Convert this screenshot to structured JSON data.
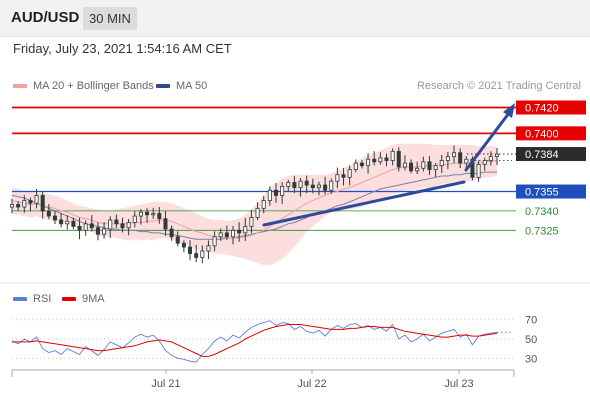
{
  "header": {
    "pair": "AUD/USD",
    "timeframe": "30 MIN"
  },
  "datetime": "Friday, July 23, 2021 1:54:16 AM CET",
  "legend": {
    "ma20": {
      "label": "MA 20 + Bollinger Bands",
      "color": "#f08080"
    },
    "ma50": {
      "label": "MA 50",
      "color": "#2f4a8a"
    },
    "rsi": {
      "label": "RSI",
      "color": "#5b7fdb"
    },
    "rsi_ma": {
      "label": "9MA",
      "color": "#e00000"
    }
  },
  "credit": "Research © 2021 Trading Central",
  "colors": {
    "resistance": "#e60000",
    "support_main": "#1f4fbf",
    "support_minor": "#2e8b2e",
    "current": "#2b2b2b",
    "trend": "#2f4a9a",
    "bollinger": "#fbd8d8",
    "candle_up": "#2f3a3a",
    "candle_down": "#2f3a3a"
  },
  "chart_data": {
    "type": "candlestick",
    "price_ylim": [
      0.7285,
      0.7432
    ],
    "levels": [
      {
        "value": 0.742,
        "label": "0.7420",
        "kind": "resistance"
      },
      {
        "value": 0.74,
        "label": "0.7400",
        "kind": "resistance"
      },
      {
        "value": 0.7384,
        "label": "0.7384",
        "kind": "current"
      },
      {
        "value": 0.7355,
        "label": "0.7355",
        "kind": "support_main"
      },
      {
        "value": 0.734,
        "label": "0.7340",
        "kind": "support_minor"
      },
      {
        "value": 0.7325,
        "label": "0.7325",
        "kind": "support_minor"
      }
    ],
    "x_ticks": [
      "Jul 21",
      "Jul 22",
      "Jul 23"
    ],
    "close_path": [
      0.7345,
      0.7343,
      0.7348,
      0.7346,
      0.7352,
      0.734,
      0.7336,
      0.7333,
      0.733,
      0.7332,
      0.7328,
      0.7325,
      0.733,
      0.7327,
      0.7322,
      0.7326,
      0.7333,
      0.733,
      0.7327,
      0.7331,
      0.7336,
      0.7339,
      0.7337,
      0.7338,
      0.7334,
      0.7326,
      0.732,
      0.7315,
      0.7312,
      0.7307,
      0.7304,
      0.7309,
      0.7313,
      0.732,
      0.7323,
      0.732,
      0.7325,
      0.7323,
      0.7328,
      0.7335,
      0.7342,
      0.7348,
      0.7356,
      0.7352,
      0.7359,
      0.7362,
      0.7358,
      0.7363,
      0.736,
      0.7358,
      0.736,
      0.7356,
      0.7363,
      0.7368,
      0.7366,
      0.7372,
      0.7377,
      0.7375,
      0.738,
      0.7378,
      0.7381,
      0.7379,
      0.7386,
      0.7374,
      0.7377,
      0.7371,
      0.7373,
      0.7378,
      0.7372,
      0.7375,
      0.7379,
      0.7382,
      0.7385,
      0.7377,
      0.738,
      0.7366,
      0.7376,
      0.7379,
      0.7382,
      0.7384
    ],
    "ma20": [
      0.7348,
      0.7347,
      0.7346,
      0.7345,
      0.7345,
      0.7344,
      0.7343,
      0.7342,
      0.734,
      0.7339,
      0.7337,
      0.7335,
      0.7334,
      0.7333,
      0.7331,
      0.733,
      0.733,
      0.733,
      0.733,
      0.733,
      0.7331,
      0.7331,
      0.7332,
      0.7332,
      0.7333,
      0.7333,
      0.7332,
      0.733,
      0.7328,
      0.7326,
      0.7324,
      0.7323,
      0.7321,
      0.732,
      0.732,
      0.7319,
      0.7319,
      0.7319,
      0.732,
      0.7321,
      0.7323,
      0.7325,
      0.7328,
      0.7331,
      0.7334,
      0.7337,
      0.734,
      0.7343,
      0.7346,
      0.7348,
      0.735,
      0.7352,
      0.7354,
      0.7355,
      0.7357,
      0.7358,
      0.736,
      0.7362,
      0.7364,
      0.7366,
      0.7368,
      0.737,
      0.7372,
      0.7373,
      0.7374,
      0.7374,
      0.7374,
      0.7375,
      0.7375,
      0.7375,
      0.7376,
      0.7376,
      0.7377,
      0.7377,
      0.7377,
      0.7377,
      0.7377,
      0.7378,
      0.7378,
      0.7379
    ],
    "bollinger_upper": [
      0.7358,
      0.7357,
      0.7356,
      0.7355,
      0.7354,
      0.7354,
      0.7353,
      0.7352,
      0.735,
      0.7348,
      0.7346,
      0.7344,
      0.7343,
      0.7342,
      0.7341,
      0.734,
      0.734,
      0.7341,
      0.7342,
      0.7343,
      0.7344,
      0.7345,
      0.7346,
      0.7347,
      0.7347,
      0.7347,
      0.7346,
      0.7344,
      0.7342,
      0.734,
      0.7338,
      0.7336,
      0.7334,
      0.7333,
      0.7333,
      0.7332,
      0.7333,
      0.7334,
      0.7337,
      0.7341,
      0.7346,
      0.7352,
      0.7358,
      0.7362,
      0.7365,
      0.7367,
      0.7368,
      0.7368,
      0.7368,
      0.7368,
      0.7368,
      0.7368,
      0.7369,
      0.7371,
      0.7373,
      0.7375,
      0.7378,
      0.7381,
      0.7383,
      0.7385,
      0.7387,
      0.7389,
      0.7391,
      0.7392,
      0.7392,
      0.7392,
      0.7392,
      0.7392,
      0.7392,
      0.7391,
      0.7391,
      0.7391,
      0.7391,
      0.7391,
      0.7391,
      0.7391,
      0.739,
      0.739,
      0.739,
      0.739
    ],
    "bollinger_lower": [
      0.7338,
      0.7337,
      0.7336,
      0.7335,
      0.7336,
      0.7334,
      0.7333,
      0.7332,
      0.733,
      0.733,
      0.7328,
      0.7326,
      0.7325,
      0.7324,
      0.7321,
      0.732,
      0.732,
      0.7319,
      0.7318,
      0.7317,
      0.7318,
      0.7317,
      0.7318,
      0.7317,
      0.7319,
      0.7319,
      0.7318,
      0.7316,
      0.7314,
      0.7312,
      0.731,
      0.7309,
      0.7308,
      0.7307,
      0.7307,
      0.7306,
      0.7305,
      0.7304,
      0.7303,
      0.7301,
      0.73,
      0.7298,
      0.7298,
      0.73,
      0.7303,
      0.7307,
      0.7312,
      0.7318,
      0.7324,
      0.7328,
      0.7332,
      0.7336,
      0.7339,
      0.7339,
      0.7341,
      0.7341,
      0.7342,
      0.7343,
      0.7345,
      0.7347,
      0.7349,
      0.7351,
      0.7353,
      0.7354,
      0.7356,
      0.7356,
      0.7356,
      0.7358,
      0.7358,
      0.7359,
      0.7361,
      0.7361,
      0.7363,
      0.7363,
      0.7363,
      0.7363,
      0.7364,
      0.7366,
      0.7366,
      0.7368
    ],
    "ma50": [
      0.7352,
      0.7351,
      0.735,
      0.7348,
      0.7346,
      0.7344,
      0.7342,
      0.734,
      0.7338,
      0.7336,
      0.7334,
      0.7332,
      0.733,
      0.7329,
      0.7328,
      0.7327,
      0.7326,
      0.7326,
      0.7325,
      0.7325,
      0.7325,
      0.7324,
      0.7324,
      0.7323,
      0.7323,
      0.7322,
      0.7322,
      0.7321,
      0.732,
      0.7319,
      0.7318,
      0.7318,
      0.7318,
      0.7318,
      0.7318,
      0.7319,
      0.7319,
      0.732,
      0.7321,
      0.7322,
      0.7323,
      0.7324,
      0.7325,
      0.7326,
      0.7328,
      0.733,
      0.7331,
      0.7333,
      0.7335,
      0.7337,
      0.7338,
      0.734,
      0.7342,
      0.7344,
      0.7345,
      0.7347,
      0.7349,
      0.7351,
      0.7353,
      0.7355,
      0.7357,
      0.7358,
      0.7359,
      0.736,
      0.7361,
      0.7362,
      0.7363,
      0.7364,
      0.7365,
      0.7366,
      0.7367,
      0.7367,
      0.7368,
      0.7368,
      0.7369,
      0.7369,
      0.7369,
      0.737,
      0.737,
      0.737
    ],
    "rsi": {
      "ylim": [
        22,
        78
      ],
      "ticks": [
        70,
        50,
        30
      ],
      "values": [
        48,
        45,
        50,
        47,
        52,
        40,
        36,
        38,
        34,
        40,
        37,
        34,
        42,
        38,
        33,
        39,
        47,
        44,
        41,
        46,
        52,
        55,
        52,
        54,
        48,
        38,
        33,
        30,
        29,
        27,
        26,
        34,
        40,
        48,
        52,
        48,
        54,
        51,
        57,
        62,
        65,
        67,
        69,
        64,
        67,
        66,
        60,
        63,
        58,
        56,
        59,
        53,
        60,
        64,
        61,
        65,
        66,
        62,
        64,
        60,
        62,
        58,
        65,
        50,
        54,
        47,
        50,
        55,
        48,
        52,
        56,
        58,
        60,
        52,
        55,
        44,
        53,
        55,
        56,
        57
      ],
      "ma9": [
        47,
        47,
        47,
        47,
        48,
        47,
        46,
        45,
        44,
        43,
        42,
        41,
        40,
        39,
        38,
        38,
        39,
        40,
        41,
        42,
        43,
        45,
        47,
        48,
        49,
        48,
        47,
        44,
        41,
        38,
        35,
        32,
        32,
        34,
        37,
        40,
        43,
        46,
        50,
        53,
        56,
        59,
        61,
        63,
        64,
        65,
        65,
        65,
        64,
        63,
        62,
        61,
        60,
        60,
        60,
        61,
        61,
        62,
        63,
        63,
        62,
        62,
        62,
        60,
        58,
        57,
        56,
        55,
        54,
        53,
        52,
        52,
        53,
        54,
        54,
        53,
        53,
        54,
        55,
        56
      ]
    }
  }
}
